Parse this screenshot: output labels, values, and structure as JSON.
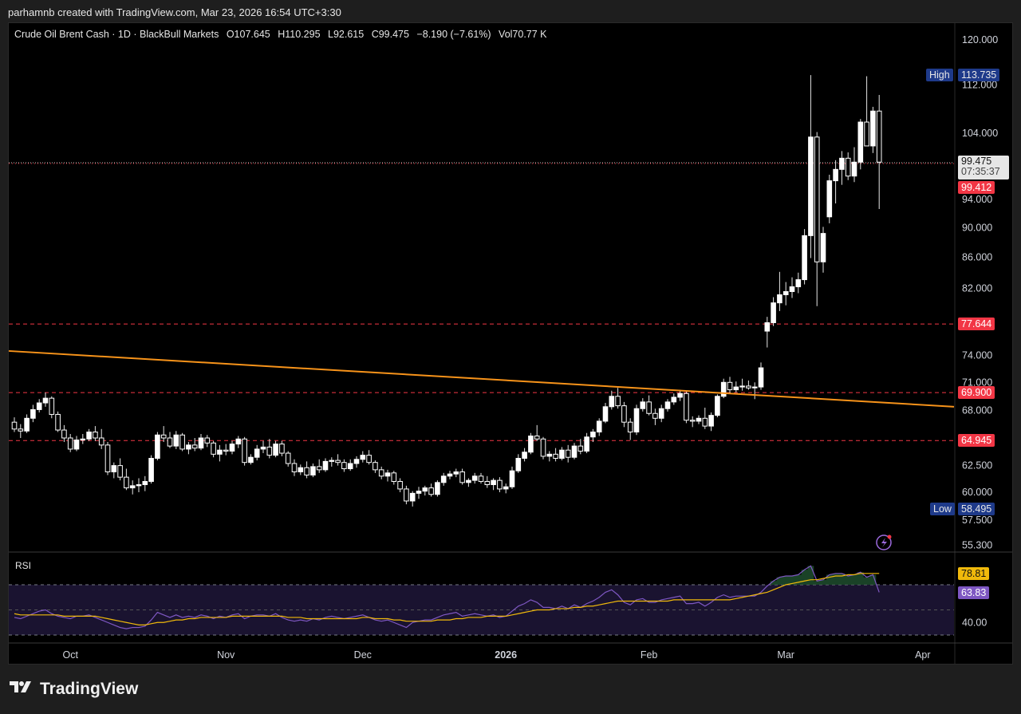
{
  "header": {
    "attribution": "parhamnb created with TradingView.com, Mar 23, 2026 16:54 UTC+3:30"
  },
  "legend": {
    "symbol": "Crude Oil Brent Cash · 1D · BlackBull Markets",
    "open": "O107.645",
    "high": "H110.295",
    "low": "L92.615",
    "close": "C99.475",
    "change": "−8.190 (−7.61%)",
    "volume": "Vol70.77 K"
  },
  "rsi_panel": {
    "label": "RSI",
    "value_signal": "78.81",
    "value_rsi": "63.83"
  },
  "price_tags": {
    "high_label": "High",
    "high_value": "113.735",
    "low_label": "Low",
    "low_value": "58.495",
    "last_price": "99.475",
    "countdown": "07:35:37",
    "line_99": "99.412",
    "line_77": "77.644",
    "line_69": "69.900",
    "line_64": "64.945"
  },
  "footer": {
    "brand": "TradingView"
  },
  "colors": {
    "background": "#000000",
    "candle_up": "#ffffff",
    "candle_down": "#ffffff",
    "trendline": "#f7931a",
    "hline": "#f23645",
    "rsi": "#7e57c2",
    "rsi_ma": "#f0b90b",
    "high_low_tag": "#1e3a8a"
  },
  "chart_data": {
    "type": "candlestick",
    "title": "Crude Oil Brent Cash · 1D · BlackBull Markets",
    "y_scale": "log",
    "y_ticks": [
      "120.000",
      "112.000",
      "104.000",
      "94.000",
      "90.000",
      "86.000",
      "82.000",
      "74.000",
      "71.000",
      "68.000",
      "62.500",
      "60.000",
      "57.500",
      "55.300"
    ],
    "x_ticks": [
      "Oct",
      "Nov",
      "Dec",
      "2026",
      "Feb",
      "Mar",
      "Apr"
    ],
    "horizontal_lines": [
      99.412,
      77.644,
      69.9,
      64.945
    ],
    "trendline": {
      "from": [
        "2025-09-15",
        74.5
      ],
      "to": [
        "2026-04-01",
        68.4
      ]
    },
    "rsi_ticks": [
      "40.00"
    ],
    "rsi_levels": [
      70,
      30
    ],
    "ohlc": [
      [
        66.8,
        67.3,
        65.8,
        66.1
      ],
      [
        66.1,
        66.6,
        65.2,
        65.9
      ],
      [
        65.9,
        67.6,
        65.7,
        67.2
      ],
      [
        67.2,
        68.6,
        66.8,
        68.1
      ],
      [
        68.1,
        69.2,
        67.8,
        68.8
      ],
      [
        68.8,
        69.9,
        68.4,
        69.3
      ],
      [
        69.3,
        69.5,
        67.2,
        67.6
      ],
      [
        67.6,
        67.9,
        65.8,
        66.0
      ],
      [
        66.0,
        66.5,
        64.8,
        65.2
      ],
      [
        65.2,
        65.6,
        63.8,
        64.1
      ],
      [
        64.1,
        65.4,
        63.9,
        65.0
      ],
      [
        65.0,
        65.6,
        64.6,
        65.1
      ],
      [
        65.1,
        66.1,
        64.9,
        65.8
      ],
      [
        65.8,
        66.4,
        64.9,
        65.2
      ],
      [
        65.2,
        66.1,
        64.1,
        64.5
      ],
      [
        64.5,
        64.8,
        61.6,
        61.9
      ],
      [
        61.9,
        62.8,
        61.3,
        62.5
      ],
      [
        62.5,
        63.2,
        61.1,
        61.4
      ],
      [
        61.4,
        62.2,
        60.2,
        60.4
      ],
      [
        60.4,
        61.1,
        59.8,
        60.6
      ],
      [
        60.6,
        61.3,
        60.0,
        60.7
      ],
      [
        60.7,
        61.5,
        60.1,
        61.0
      ],
      [
        61.0,
        63.5,
        60.8,
        63.2
      ],
      [
        63.2,
        65.8,
        63.0,
        65.5
      ],
      [
        65.5,
        66.4,
        64.8,
        65.2
      ],
      [
        65.2,
        65.8,
        64.2,
        64.4
      ],
      [
        64.4,
        65.9,
        64.1,
        65.5
      ],
      [
        65.5,
        65.7,
        63.9,
        64.1
      ],
      [
        64.1,
        64.8,
        63.6,
        64.5
      ],
      [
        64.5,
        65.2,
        63.9,
        64.2
      ],
      [
        64.2,
        65.6,
        64.0,
        65.2
      ],
      [
        65.2,
        65.5,
        64.3,
        64.7
      ],
      [
        64.7,
        64.9,
        63.3,
        63.6
      ],
      [
        63.6,
        64.5,
        62.9,
        64.0
      ],
      [
        64.0,
        64.6,
        63.5,
        63.9
      ],
      [
        63.9,
        64.9,
        63.6,
        64.6
      ],
      [
        64.6,
        65.4,
        64.2,
        65.1
      ],
      [
        65.1,
        65.3,
        62.5,
        62.8
      ],
      [
        62.8,
        63.6,
        62.6,
        63.3
      ],
      [
        63.3,
        64.5,
        63.0,
        64.1
      ],
      [
        64.1,
        64.9,
        63.7,
        64.3
      ],
      [
        64.3,
        65.1,
        63.2,
        63.5
      ],
      [
        63.5,
        64.9,
        63.3,
        64.6
      ],
      [
        64.6,
        64.9,
        63.4,
        63.7
      ],
      [
        63.7,
        63.9,
        62.4,
        62.7
      ],
      [
        62.7,
        63.1,
        61.5,
        61.9
      ],
      [
        61.9,
        62.6,
        61.6,
        62.3
      ],
      [
        62.3,
        62.9,
        61.3,
        61.6
      ],
      [
        61.6,
        62.7,
        61.4,
        62.4
      ],
      [
        62.4,
        63.1,
        61.8,
        62.1
      ],
      [
        62.1,
        63.2,
        61.9,
        62.9
      ],
      [
        62.9,
        63.3,
        62.4,
        63.0
      ],
      [
        63.0,
        63.6,
        62.5,
        62.8
      ],
      [
        62.8,
        63.1,
        61.9,
        62.2
      ],
      [
        62.2,
        63.1,
        62.0,
        62.7
      ],
      [
        62.7,
        63.4,
        62.3,
        63.1
      ],
      [
        63.1,
        63.9,
        62.8,
        63.5
      ],
      [
        63.5,
        64.0,
        62.6,
        62.8
      ],
      [
        62.8,
        63.0,
        61.8,
        62.1
      ],
      [
        62.1,
        62.4,
        61.2,
        61.5
      ],
      [
        61.5,
        62.1,
        61.0,
        61.8
      ],
      [
        61.8,
        62.0,
        60.7,
        61.0
      ],
      [
        61.0,
        61.3,
        60.0,
        60.3
      ],
      [
        60.3,
        60.6,
        58.9,
        59.2
      ],
      [
        59.2,
        60.1,
        58.7,
        59.9
      ],
      [
        59.9,
        60.5,
        59.4,
        60.1
      ],
      [
        60.1,
        60.6,
        59.7,
        60.4
      ],
      [
        60.4,
        60.8,
        59.6,
        59.8
      ],
      [
        59.8,
        61.1,
        59.6,
        60.9
      ],
      [
        60.9,
        61.8,
        60.6,
        61.5
      ],
      [
        61.5,
        62.0,
        61.2,
        61.7
      ],
      [
        61.7,
        62.2,
        61.4,
        61.9
      ],
      [
        61.9,
        62.2,
        60.7,
        60.9
      ],
      [
        60.9,
        61.3,
        60.5,
        61.1
      ],
      [
        61.1,
        61.8,
        60.8,
        61.5
      ],
      [
        61.5,
        61.8,
        60.8,
        61.0
      ],
      [
        61.0,
        61.5,
        60.4,
        60.7
      ],
      [
        60.7,
        61.3,
        60.2,
        61.1
      ],
      [
        61.1,
        61.4,
        60.0,
        60.3
      ],
      [
        60.3,
        60.8,
        59.9,
        60.5
      ],
      [
        60.5,
        62.4,
        60.3,
        62.0
      ],
      [
        62.0,
        63.6,
        61.8,
        63.2
      ],
      [
        63.2,
        64.2,
        62.9,
        63.8
      ],
      [
        63.8,
        65.7,
        63.6,
        65.4
      ],
      [
        65.4,
        66.5,
        64.9,
        65.1
      ],
      [
        65.1,
        65.3,
        63.1,
        63.4
      ],
      [
        63.4,
        63.9,
        62.9,
        63.6
      ],
      [
        63.6,
        64.2,
        62.9,
        63.2
      ],
      [
        63.2,
        64.3,
        63.0,
        64.0
      ],
      [
        64.0,
        64.5,
        62.8,
        63.3
      ],
      [
        63.3,
        64.7,
        63.1,
        64.4
      ],
      [
        64.4,
        65.1,
        63.6,
        63.9
      ],
      [
        63.9,
        65.7,
        63.7,
        65.3
      ],
      [
        65.3,
        66.1,
        64.8,
        65.8
      ],
      [
        65.8,
        67.2,
        65.4,
        66.9
      ],
      [
        66.9,
        68.8,
        66.7,
        68.4
      ],
      [
        68.4,
        70.1,
        68.1,
        69.5
      ],
      [
        69.5,
        70.4,
        68.2,
        68.5
      ],
      [
        68.5,
        68.9,
        66.3,
        66.8
      ],
      [
        66.8,
        67.2,
        65.0,
        65.8
      ],
      [
        65.8,
        68.6,
        65.5,
        68.2
      ],
      [
        68.2,
        69.3,
        67.9,
        68.9
      ],
      [
        68.9,
        69.6,
        67.5,
        67.7
      ],
      [
        67.7,
        68.2,
        66.5,
        67.2
      ],
      [
        67.2,
        68.6,
        66.8,
        68.2
      ],
      [
        68.2,
        69.2,
        67.9,
        68.9
      ],
      [
        68.9,
        69.8,
        68.6,
        69.4
      ],
      [
        69.4,
        70.2,
        69.0,
        69.8
      ],
      [
        69.8,
        70.1,
        66.7,
        67.0
      ],
      [
        67.0,
        67.4,
        66.3,
        66.9
      ],
      [
        66.9,
        67.5,
        66.6,
        67.2
      ],
      [
        67.2,
        68.3,
        66.1,
        66.4
      ],
      [
        66.4,
        67.8,
        65.9,
        67.5
      ],
      [
        67.5,
        69.7,
        67.3,
        69.5
      ],
      [
        69.5,
        71.4,
        69.3,
        71.0
      ],
      [
        71.0,
        71.6,
        69.8,
        70.2
      ],
      [
        70.2,
        71.1,
        69.9,
        70.5
      ],
      [
        70.5,
        71.4,
        70.1,
        70.6
      ],
      [
        70.6,
        71.2,
        70.2,
        70.4
      ],
      [
        70.4,
        71.0,
        69.2,
        70.5
      ],
      [
        70.5,
        73.2,
        70.2,
        72.6
      ],
      [
        76.8,
        78.5,
        74.9,
        77.8
      ],
      [
        77.8,
        80.9,
        77.4,
        80.2
      ],
      [
        80.2,
        84.1,
        79.2,
        81.2
      ],
      [
        81.2,
        82.8,
        79.9,
        81.6
      ],
      [
        81.6,
        83.4,
        80.8,
        82.2
      ],
      [
        82.2,
        84.0,
        81.4,
        83.1
      ],
      [
        83.1,
        89.8,
        82.5,
        88.9
      ],
      [
        88.9,
        113.7,
        85.9,
        103.4
      ],
      [
        103.4,
        104.2,
        79.8,
        85.4
      ],
      [
        85.4,
        90.1,
        84.0,
        89.2
      ],
      [
        91.5,
        97.6,
        90.6,
        96.7
      ],
      [
        96.7,
        99.8,
        93.4,
        98.4
      ],
      [
        98.4,
        101.2,
        96.1,
        100.1
      ],
      [
        100.1,
        101.0,
        96.8,
        97.4
      ],
      [
        97.4,
        101.8,
        96.5,
        99.5
      ],
      [
        99.5,
        106.3,
        98.4,
        105.8
      ],
      [
        105.8,
        113.5,
        102.3,
        102.0
      ],
      [
        102.0,
        108.3,
        100.9,
        107.6
      ],
      [
        107.6,
        110.3,
        92.6,
        99.5
      ]
    ],
    "rsi": [
      44,
      43,
      45,
      47,
      49,
      50,
      47,
      45,
      44,
      43,
      45,
      45,
      46,
      44,
      42,
      40,
      38,
      36,
      35,
      36,
      36,
      37,
      42,
      48,
      46,
      44,
      46,
      44,
      45,
      44,
      46,
      45,
      43,
      45,
      44,
      46,
      47,
      43,
      45,
      46,
      46,
      45,
      47,
      44,
      42,
      41,
      42,
      41,
      43,
      42,
      44,
      45,
      44,
      43,
      44,
      45,
      46,
      44,
      42,
      41,
      42,
      40,
      38,
      36,
      40,
      41,
      42,
      42,
      44,
      46,
      47,
      48,
      45,
      46,
      47,
      46,
      45,
      46,
      44,
      45,
      49,
      53,
      55,
      58,
      56,
      52,
      52,
      51,
      53,
      51,
      54,
      52,
      55,
      57,
      60,
      64,
      66,
      62,
      56,
      54,
      58,
      59,
      56,
      56,
      58,
      59,
      60,
      61,
      55,
      55,
      56,
      53,
      56,
      60,
      62,
      60,
      61,
      61,
      61,
      61,
      64,
      69,
      73,
      76,
      77,
      77,
      78,
      82,
      85,
      73,
      74,
      78,
      79,
      79,
      77,
      78,
      80,
      76,
      78,
      64
    ],
    "rsi_ma": [
      47,
      46,
      46,
      46,
      46,
      46,
      46,
      46,
      45,
      45,
      45,
      45,
      45,
      45,
      44,
      43,
      42,
      41,
      40,
      39,
      38,
      38,
      39,
      40,
      40,
      41,
      42,
      42,
      43,
      43,
      44,
      44,
      44,
      44,
      44,
      45,
      45,
      45,
      45,
      45,
      45,
      45,
      45,
      45,
      44,
      44,
      44,
      43,
      43,
      43,
      43,
      43,
      43,
      43,
      43,
      43,
      44,
      44,
      43,
      43,
      43,
      42,
      42,
      41,
      41,
      41,
      41,
      41,
      42,
      42,
      42,
      43,
      43,
      44,
      44,
      44,
      45,
      45,
      45,
      45,
      46,
      47,
      48,
      49,
      50,
      50,
      50,
      51,
      51,
      51,
      52,
      52,
      53,
      53,
      54,
      55,
      56,
      57,
      57,
      57,
      57,
      57,
      57,
      57,
      57,
      57,
      58,
      58,
      58,
      58,
      58,
      58,
      58,
      58,
      58,
      58,
      59,
      60,
      61,
      62,
      63,
      64,
      66,
      68,
      70,
      71,
      72,
      73,
      74,
      74,
      75,
      76,
      77,
      77,
      78,
      78,
      79,
      79,
      79,
      79
    ]
  }
}
